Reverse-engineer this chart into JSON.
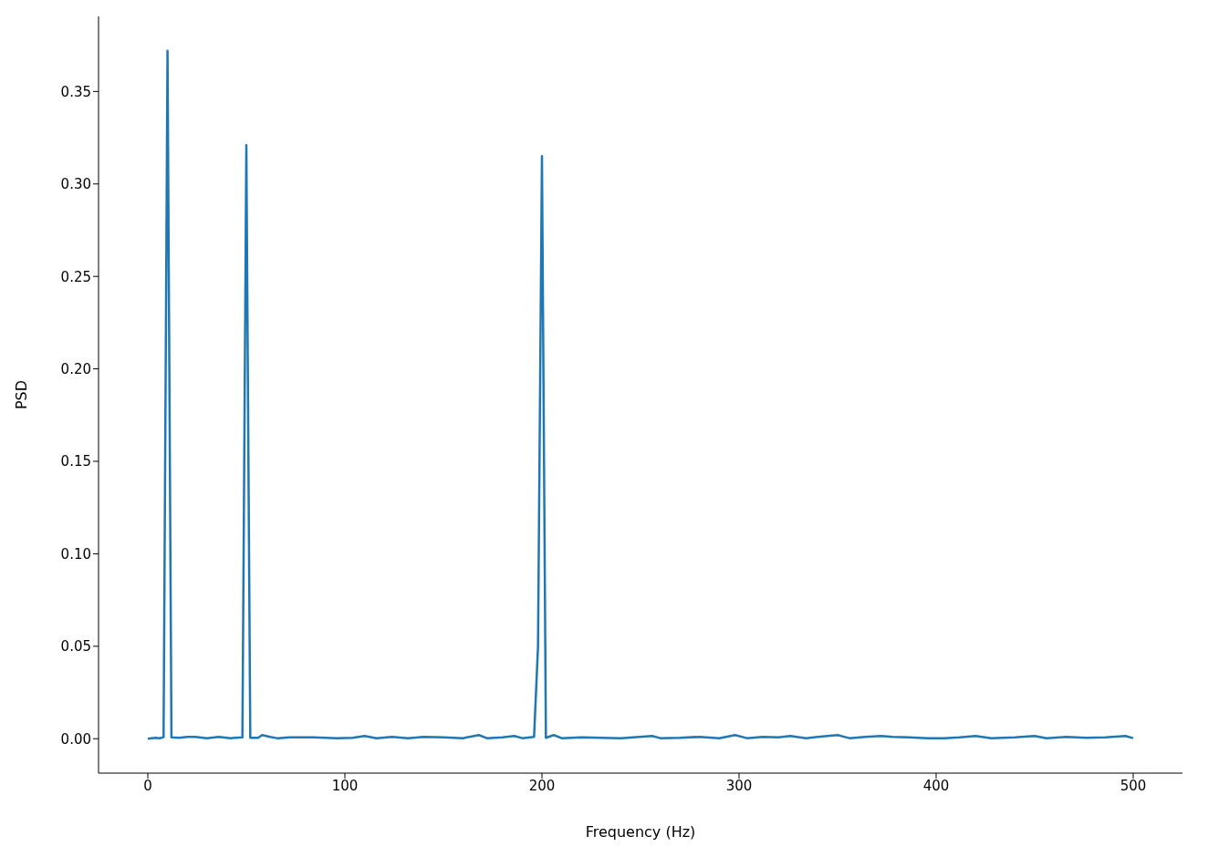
{
  "chart_data": {
    "type": "line",
    "xlabel": "Frequency (Hz)",
    "ylabel": "PSD",
    "xlim": [
      -25,
      525
    ],
    "ylim": [
      -0.0186,
      0.3906
    ],
    "xticks": [
      0,
      100,
      200,
      300,
      400,
      500
    ],
    "yticks": [
      {
        "value": 0,
        "label": "0.00"
      },
      {
        "value": 0.05,
        "label": "0.05"
      },
      {
        "value": 0.1,
        "label": "0.10"
      },
      {
        "value": 0.15,
        "label": "0.15"
      },
      {
        "value": 0.2,
        "label": "0.20"
      },
      {
        "value": 0.25,
        "label": "0.25"
      },
      {
        "value": 0.3,
        "label": "0.30"
      },
      {
        "value": 0.35,
        "label": "0.35"
      }
    ],
    "grid": false,
    "legend": false,
    "marker": "none",
    "line_style": "solid",
    "series": [
      {
        "color": "#1f77b4",
        "x": [
          0,
          4,
          6,
          8,
          10,
          12,
          16,
          20,
          24,
          30,
          36,
          42,
          48,
          50,
          52,
          56,
          58,
          62,
          66,
          72,
          84,
          96,
          104,
          110,
          116,
          124,
          132,
          140,
          150,
          160,
          168,
          172,
          180,
          186,
          190,
          196,
          198,
          200,
          202,
          206,
          210,
          220,
          240,
          256,
          260,
          270,
          280,
          290,
          298,
          304,
          312,
          320,
          326,
          334,
          340,
          350,
          356,
          364,
          372,
          378,
          386,
          396,
          404,
          412,
          420,
          428,
          440,
          450,
          456,
          466,
          476,
          486,
          496,
          500
        ],
        "values": [
          0,
          0.0005,
          0.0003,
          0.0008,
          0.372,
          0.0008,
          0.0005,
          0.001,
          0.001,
          0.0003,
          0.001,
          0.0003,
          0.0008,
          0.321,
          0.0005,
          0.0005,
          0.002,
          0.001,
          0.0002,
          0.0008,
          0.0008,
          0.0002,
          0.0005,
          0.0015,
          0.0003,
          0.001,
          0.0003,
          0.001,
          0.0008,
          0.0003,
          0.002,
          0.0003,
          0.0008,
          0.0015,
          0.0003,
          0.001,
          0.05,
          0.315,
          0.0005,
          0.002,
          0.0003,
          0.0008,
          0.0003,
          0.0015,
          0.0003,
          0.0005,
          0.001,
          0.0003,
          0.002,
          0.0003,
          0.001,
          0.0008,
          0.0015,
          0.0003,
          0.001,
          0.002,
          0.0003,
          0.001,
          0.0015,
          0.001,
          0.0008,
          0.0003,
          0.0003,
          0.0008,
          0.0015,
          0.0003,
          0.0008,
          0.0015,
          0.0003,
          0.001,
          0.0005,
          0.0008,
          0.0015,
          0.0003
        ]
      }
    ]
  }
}
